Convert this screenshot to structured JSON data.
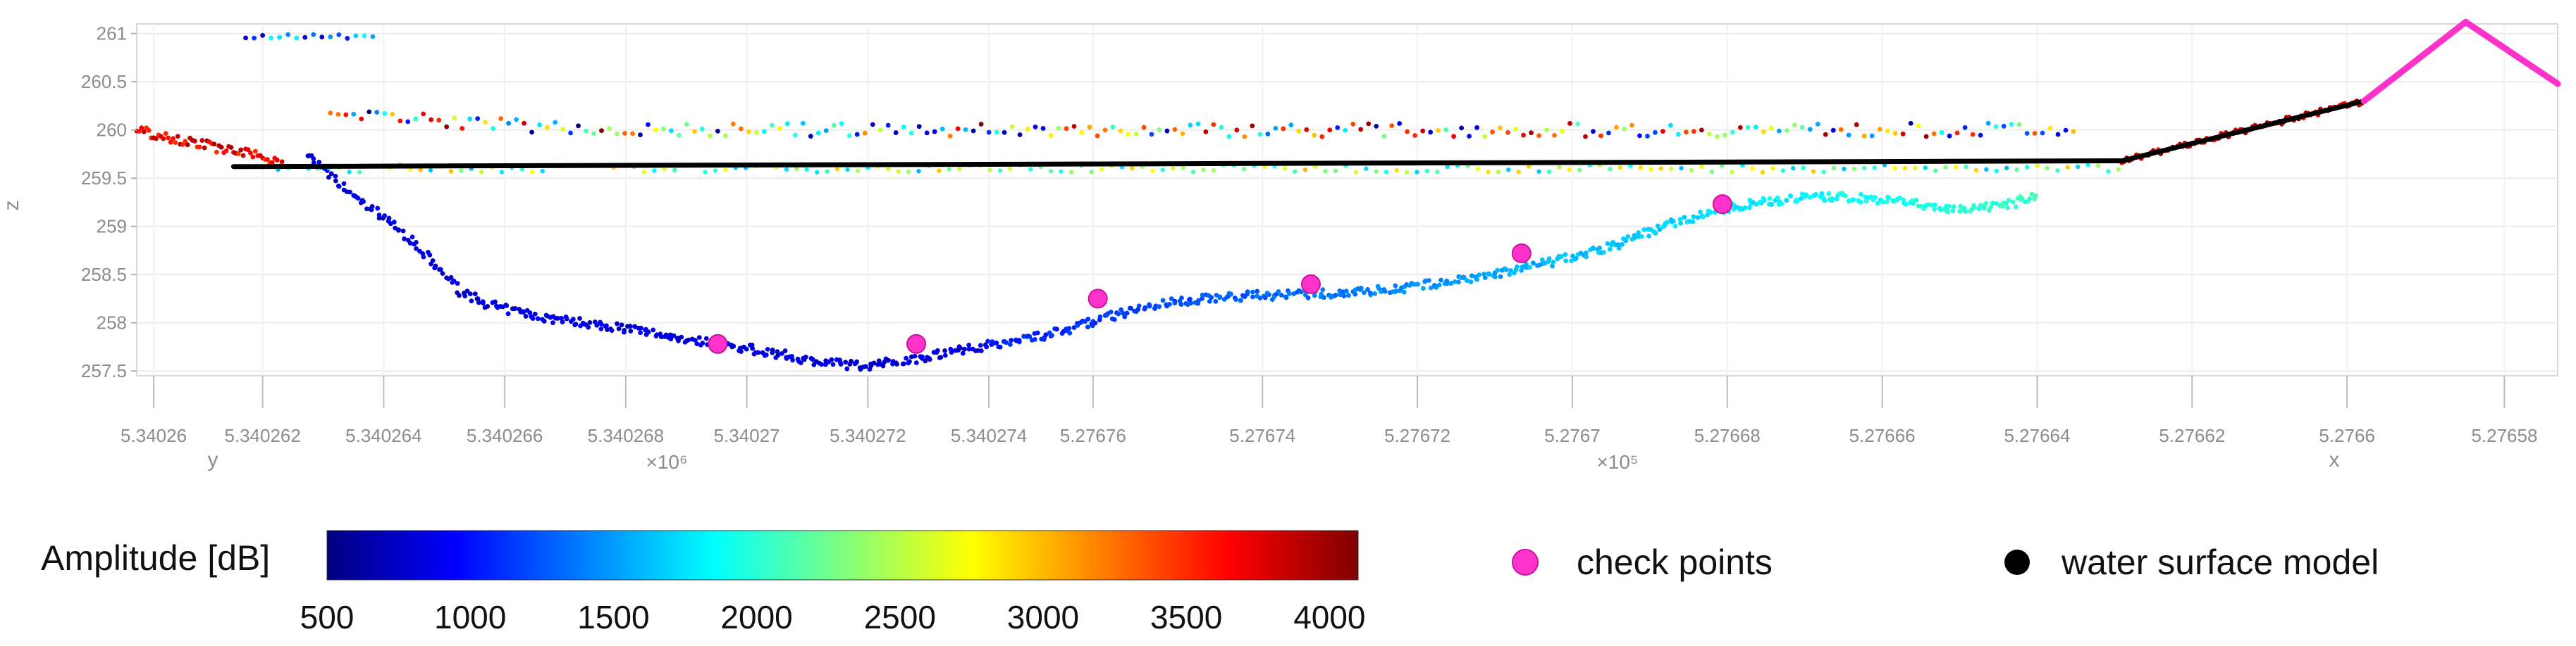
{
  "chart_data": {
    "type": "scatter",
    "title": "",
    "axes": {
      "z": {
        "label": "z",
        "range": [
          257.45,
          261.1
        ],
        "ticks": [
          "261",
          "260.5",
          "260",
          "259.5",
          "259",
          "258.5",
          "258",
          "257.5"
        ],
        "tick_values": [
          261,
          260.5,
          260,
          259.5,
          259,
          258.5,
          258,
          257.5
        ]
      },
      "y": {
        "label": "y",
        "ticks": [
          "5.34026",
          "5.340262",
          "5.340264",
          "5.340266",
          "5.340268",
          "5.34027",
          "5.340272",
          "5.340274"
        ],
        "multiplier": "×10⁶"
      },
      "x": {
        "label": "x",
        "ticks": [
          "5.27676",
          "5.27674",
          "5.27672",
          "5.2767",
          "5.27668",
          "5.27666",
          "5.27664",
          "5.27662",
          "5.2766",
          "5.27658"
        ],
        "multiplier": "×10⁵"
      }
    },
    "grid": true,
    "colorbar": {
      "label": "Amplitude [dB]",
      "range": [
        500,
        4100
      ],
      "ticks": [
        "500",
        "1000",
        "1500",
        "2000",
        "2500",
        "3000",
        "3500",
        "4000"
      ],
      "colormap": "jet"
    },
    "profile_domain": [
      0,
      100
    ],
    "bottom_profile": [
      {
        "s": 7.0,
        "z": 259.75
      },
      {
        "s": 9.0,
        "z": 259.3
      },
      {
        "s": 10.5,
        "z": 259.05
      },
      {
        "s": 11.5,
        "z": 258.8
      },
      {
        "s": 12.5,
        "z": 258.55
      },
      {
        "s": 13.5,
        "z": 258.3
      },
      {
        "s": 15.0,
        "z": 258.15
      },
      {
        "s": 17.0,
        "z": 258.05
      },
      {
        "s": 20.0,
        "z": 257.95
      },
      {
        "s": 23.0,
        "z": 257.82
      },
      {
        "s": 26.0,
        "z": 257.7
      },
      {
        "s": 28.0,
        "z": 257.6
      },
      {
        "s": 30.0,
        "z": 257.55
      },
      {
        "s": 32.0,
        "z": 257.62
      },
      {
        "s": 34.0,
        "z": 257.72
      },
      {
        "s": 36.0,
        "z": 257.8
      },
      {
        "s": 38.0,
        "z": 257.9
      },
      {
        "s": 40.0,
        "z": 258.05
      },
      {
        "s": 42.0,
        "z": 258.18
      },
      {
        "s": 44.0,
        "z": 258.25
      },
      {
        "s": 46.0,
        "z": 258.28
      },
      {
        "s": 49.0,
        "z": 258.3
      },
      {
        "s": 52.0,
        "z": 258.35
      },
      {
        "s": 55.0,
        "z": 258.45
      },
      {
        "s": 58.0,
        "z": 258.6
      },
      {
        "s": 61.0,
        "z": 258.8
      },
      {
        "s": 63.0,
        "z": 259.0
      },
      {
        "s": 65.0,
        "z": 259.15
      },
      {
        "s": 67.0,
        "z": 259.25
      },
      {
        "s": 69.0,
        "z": 259.3
      },
      {
        "s": 71.0,
        "z": 259.3
      },
      {
        "s": 73.0,
        "z": 259.25
      },
      {
        "s": 75.0,
        "z": 259.18
      },
      {
        "s": 77.0,
        "z": 259.2
      },
      {
        "s": 78.5,
        "z": 259.32
      }
    ],
    "series": [
      {
        "name": "check points",
        "color": "#ff33cc",
        "points": [
          {
            "s": 24.0,
            "z": 257.78
          },
          {
            "s": 32.2,
            "z": 257.78
          },
          {
            "s": 39.7,
            "z": 258.25
          },
          {
            "s": 48.5,
            "z": 258.4
          },
          {
            "s": 57.2,
            "z": 258.72
          },
          {
            "s": 65.5,
            "z": 259.23
          }
        ]
      },
      {
        "name": "water surface model",
        "color": "#000000",
        "segments": [
          {
            "s0": 4.0,
            "z0": 259.62,
            "s1": 82.0,
            "z1": 259.68
          },
          {
            "s0": 82.0,
            "z0": 259.68,
            "s1": 92.0,
            "z1": 260.3
          },
          {
            "s0": 92.0,
            "z0": 260.3,
            "s1": 96.2,
            "z1": 261.12
          },
          {
            "s0": 96.2,
            "z0": 261.12,
            "s1": 100.0,
            "z1": 260.48
          }
        ]
      }
    ]
  },
  "legend": {
    "colorbar_label": "Amplitude [dB]",
    "checkpoints_label": "check points",
    "water_label": "water surface model",
    "checkpoints_color": "#ff33cc",
    "water_color": "#000000"
  }
}
